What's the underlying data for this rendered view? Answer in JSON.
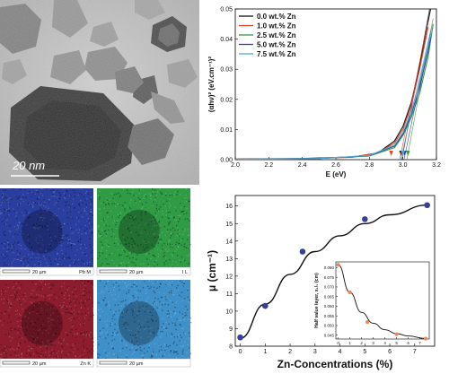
{
  "tem": {
    "scale_label": "20 nm"
  },
  "maps": [
    {
      "element": "Pb M",
      "scale": "20 µm",
      "color": "#2a3ea0"
    },
    {
      "element": "I L",
      "scale": "20 µm",
      "color": "#2f9b45"
    },
    {
      "element": "Zn K",
      "scale": "20 µm",
      "color": "#8c1c2e"
    },
    {
      "element": "",
      "scale": "20 µm",
      "color": "#3f8fc8"
    }
  ],
  "chart_data": [
    {
      "type": "line",
      "xlabel": "E (eV)",
      "ylabel": "(αhν)² (eV.cm⁻¹)²",
      "xlim": [
        2.0,
        3.2
      ],
      "ylim": [
        0.0,
        0.05
      ],
      "xticks": [
        "2.0",
        "2.2",
        "2.4",
        "2.6",
        "2.8",
        "3.0",
        "3.2"
      ],
      "yticks": [
        "0.00",
        "0.01",
        "0.02",
        "0.03",
        "0.04",
        "0.05"
      ],
      "legend_position": "top-left",
      "series": [
        {
          "name": "0.0 wt.% Zn",
          "color": "#111111",
          "band_gap": 2.99,
          "points": [
            [
              2.0,
              0.0002
            ],
            [
              2.4,
              0.0004
            ],
            [
              2.7,
              0.0009
            ],
            [
              2.85,
              0.0022
            ],
            [
              2.95,
              0.0062
            ],
            [
              3.0,
              0.011
            ],
            [
              3.05,
              0.019
            ],
            [
              3.1,
              0.031
            ],
            [
              3.14,
              0.043
            ],
            [
              3.165,
              0.05
            ]
          ]
        },
        {
          "name": "1.0 wt.% Zn",
          "color": "#e0452c",
          "band_gap": 2.93,
          "points": [
            [
              2.0,
              0.0001
            ],
            [
              2.4,
              0.0003
            ],
            [
              2.7,
              0.0008
            ],
            [
              2.85,
              0.0022
            ],
            [
              2.95,
              0.0055
            ],
            [
              3.0,
              0.01
            ],
            [
              3.05,
              0.018
            ],
            [
              3.1,
              0.03
            ],
            [
              3.15,
              0.044
            ]
          ]
        },
        {
          "name": "2.5 wt.% Zn",
          "color": "#2f9b45",
          "band_gap": 3.03,
          "points": [
            [
              2.0,
              0.0001
            ],
            [
              2.5,
              0.0004
            ],
            [
              2.8,
              0.0012
            ],
            [
              2.95,
              0.004
            ],
            [
              3.0,
              0.008
            ],
            [
              3.05,
              0.014
            ],
            [
              3.1,
              0.022
            ],
            [
              3.15,
              0.034
            ],
            [
              3.18,
              0.045
            ]
          ]
        },
        {
          "name": "5.0 wt.% Zn",
          "color": "#33408f",
          "band_gap": 3.01,
          "points": [
            [
              2.0,
              0.0001
            ],
            [
              2.5,
              0.0004
            ],
            [
              2.8,
              0.0013
            ],
            [
              2.95,
              0.0045
            ],
            [
              3.0,
              0.0085
            ],
            [
              3.05,
              0.015
            ],
            [
              3.1,
              0.024
            ],
            [
              3.15,
              0.036
            ],
            [
              3.17,
              0.042
            ]
          ]
        },
        {
          "name": "7.5 wt.% Zn",
          "color": "#52a8d8",
          "band_gap": 3.0,
          "points": [
            [
              2.0,
              0.0001
            ],
            [
              2.5,
              0.0004
            ],
            [
              2.8,
              0.0014
            ],
            [
              2.95,
              0.0048
            ],
            [
              3.0,
              0.009
            ],
            [
              3.05,
              0.016
            ],
            [
              3.1,
              0.026
            ],
            [
              3.15,
              0.038
            ],
            [
              3.17,
              0.042
            ]
          ]
        }
      ]
    },
    {
      "type": "scatter",
      "xlabel": "Zn-Concentrations (%)",
      "ylabel": "μ (cm⁻¹)",
      "xlim": [
        -0.2,
        7.8
      ],
      "ylim": [
        8,
        16.6
      ],
      "xticks": [
        "0",
        "1",
        "2",
        "3",
        "4",
        "5",
        "6",
        "7"
      ],
      "yticks": [
        "8",
        "9",
        "10",
        "11",
        "12",
        "13",
        "14",
        "15",
        "16"
      ],
      "series": [
        {
          "name": "μ",
          "color": "#34409a",
          "points": [
            [
              0,
              8.5
            ],
            [
              1,
              10.3
            ],
            [
              2.5,
              13.4
            ],
            [
              5,
              15.25
            ],
            [
              7.5,
              16.05
            ]
          ]
        }
      ],
      "fit": {
        "color": "#111111",
        "points": [
          [
            0,
            8.45
          ],
          [
            1,
            10.4
          ],
          [
            2,
            12.1
          ],
          [
            3,
            13.4
          ],
          [
            4,
            14.3
          ],
          [
            5,
            15.0
          ],
          [
            6,
            15.5
          ],
          [
            7.5,
            16.05
          ]
        ]
      },
      "inset": {
        "type": "scatter",
        "xlabel": "",
        "ylabel": "Half value layer, x₁/₂ (cm)",
        "xlim": [
          -0.2,
          7.8
        ],
        "ylim": [
          0.043,
          0.083
        ],
        "xticks": [
          "0",
          "1",
          "2",
          "3",
          "4",
          "5",
          "6",
          "7"
        ],
        "yticks": [
          "0.045",
          "0.050",
          "0.055",
          "0.060",
          "0.065",
          "0.070",
          "0.075",
          "0.080"
        ],
        "series": [
          {
            "name": "x₁/₂",
            "color": "#ea8a5a",
            "points": [
              [
                0,
                0.0815
              ],
              [
                1,
                0.0672
              ],
              [
                2.5,
                0.0518
              ],
              [
                5,
                0.0455
              ],
              [
                7.5,
                0.0432
              ]
            ]
          }
        ],
        "fit": {
          "color": "#111111",
          "points": [
            [
              0,
              0.0815
            ],
            [
              1,
              0.0672
            ],
            [
              2,
              0.0568
            ],
            [
              3,
              0.0512
            ],
            [
              4,
              0.0478
            ],
            [
              5,
              0.0458
            ],
            [
              6,
              0.0446
            ],
            [
              7.5,
              0.0433
            ]
          ]
        }
      }
    }
  ]
}
